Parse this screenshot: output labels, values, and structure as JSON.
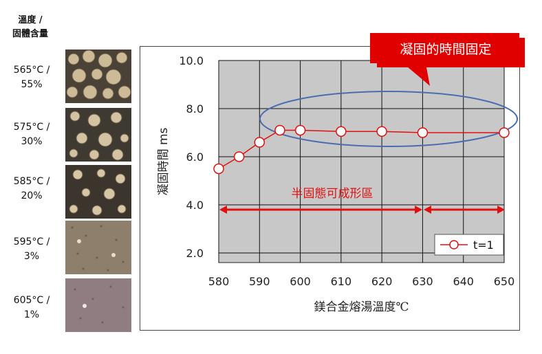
{
  "left_panel": {
    "header_line1": "溫度 /",
    "header_line2": "固體含量",
    "rows": [
      {
        "temp": "565°C /",
        "solid": "55%"
      },
      {
        "temp": "575°C /",
        "solid": "30%"
      },
      {
        "temp": "585°C /",
        "solid": "20%"
      },
      {
        "temp": "595°C /",
        "solid": "3%"
      },
      {
        "temp": "605°C /",
        "solid": "1%"
      }
    ]
  },
  "callout": {
    "text": "凝固的時間固定"
  },
  "range_label": "半固態可成形區",
  "colors": {
    "series": "#e01010",
    "ellipse": "#4a6cb0",
    "plot_bg": "#c8c8c8",
    "callout_bg": "#e00000"
  },
  "chart_data": {
    "type": "line",
    "xlabel": "鎂合金熔湯溫度℃",
    "ylabel": "凝固時間 ms",
    "x_ticks": [
      "580",
      "590",
      "600",
      "610",
      "620",
      "630",
      "640",
      "650"
    ],
    "y_ticks": [
      "2.0",
      "4.0",
      "6.0",
      "8.0",
      "10.0"
    ],
    "xlim": [
      580,
      650
    ],
    "ylim": [
      1.6,
      10.0
    ],
    "grid": true,
    "legend_position": "bottom-right",
    "series": [
      {
        "name": "t=1",
        "x": [
          580,
          585,
          590,
          595,
          600,
          610,
          620,
          630,
          650
        ],
        "y": [
          5.5,
          6.0,
          6.6,
          7.1,
          7.1,
          7.05,
          7.05,
          7.0,
          7.0
        ]
      }
    ]
  }
}
